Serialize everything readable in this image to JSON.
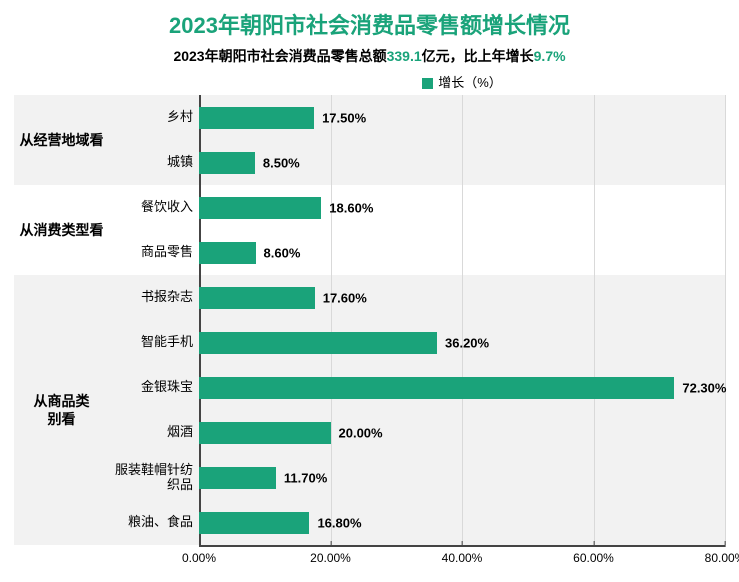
{
  "title": "2023年朝阳市社会消费品零售额增长情况",
  "title_color": "#1aa37a",
  "title_fontsize": 22,
  "subtitle": {
    "prefix": "2023年朝阳市社会消费品零售总额",
    "value1": "339.1",
    "mid": "亿元，比上年增长",
    "value2": "9.7%",
    "highlight_color": "#1aa37a",
    "fontsize": 14
  },
  "legend_label": "增长（%）",
  "chart": {
    "type": "bar-horizontal",
    "xmin": 0,
    "xmax": 80,
    "xtick_step": 20,
    "xtick_labels": [
      "0.00%",
      "20.00%",
      "40.00%",
      "60.00%",
      "80.00%"
    ],
    "bar_color": "#1aa37a",
    "band_even_color": "#f2f2f2",
    "band_odd_color": "#ffffff",
    "grid_color": "#d9d9d9",
    "axis_color": "#444444",
    "groups": [
      {
        "label": "从经营地域看",
        "rows": [
          {
            "label": "乡村",
            "value": 17.5,
            "value_label": "17.50%"
          },
          {
            "label": "城镇",
            "value": 8.5,
            "value_label": "8.50%"
          }
        ]
      },
      {
        "label": "从消费类型看",
        "rows": [
          {
            "label": "餐饮收入",
            "value": 18.6,
            "value_label": "18.60%"
          },
          {
            "label": "商品零售",
            "value": 8.6,
            "value_label": "8.60%"
          }
        ]
      },
      {
        "label": "从商品类\n别看",
        "rows": [
          {
            "label": "书报杂志",
            "value": 17.6,
            "value_label": "17.60%"
          },
          {
            "label": "智能手机",
            "value": 36.2,
            "value_label": "36.20%"
          },
          {
            "label": "金银珠宝",
            "value": 72.3,
            "value_label": "72.30%"
          },
          {
            "label": "烟酒",
            "value": 20.0,
            "value_label": "20.00%"
          },
          {
            "label": "服装鞋帽针纺织品",
            "value": 11.7,
            "value_label": "11.70%"
          },
          {
            "label": "粮油、食品",
            "value": 16.8,
            "value_label": "16.80%"
          }
        ]
      }
    ]
  }
}
